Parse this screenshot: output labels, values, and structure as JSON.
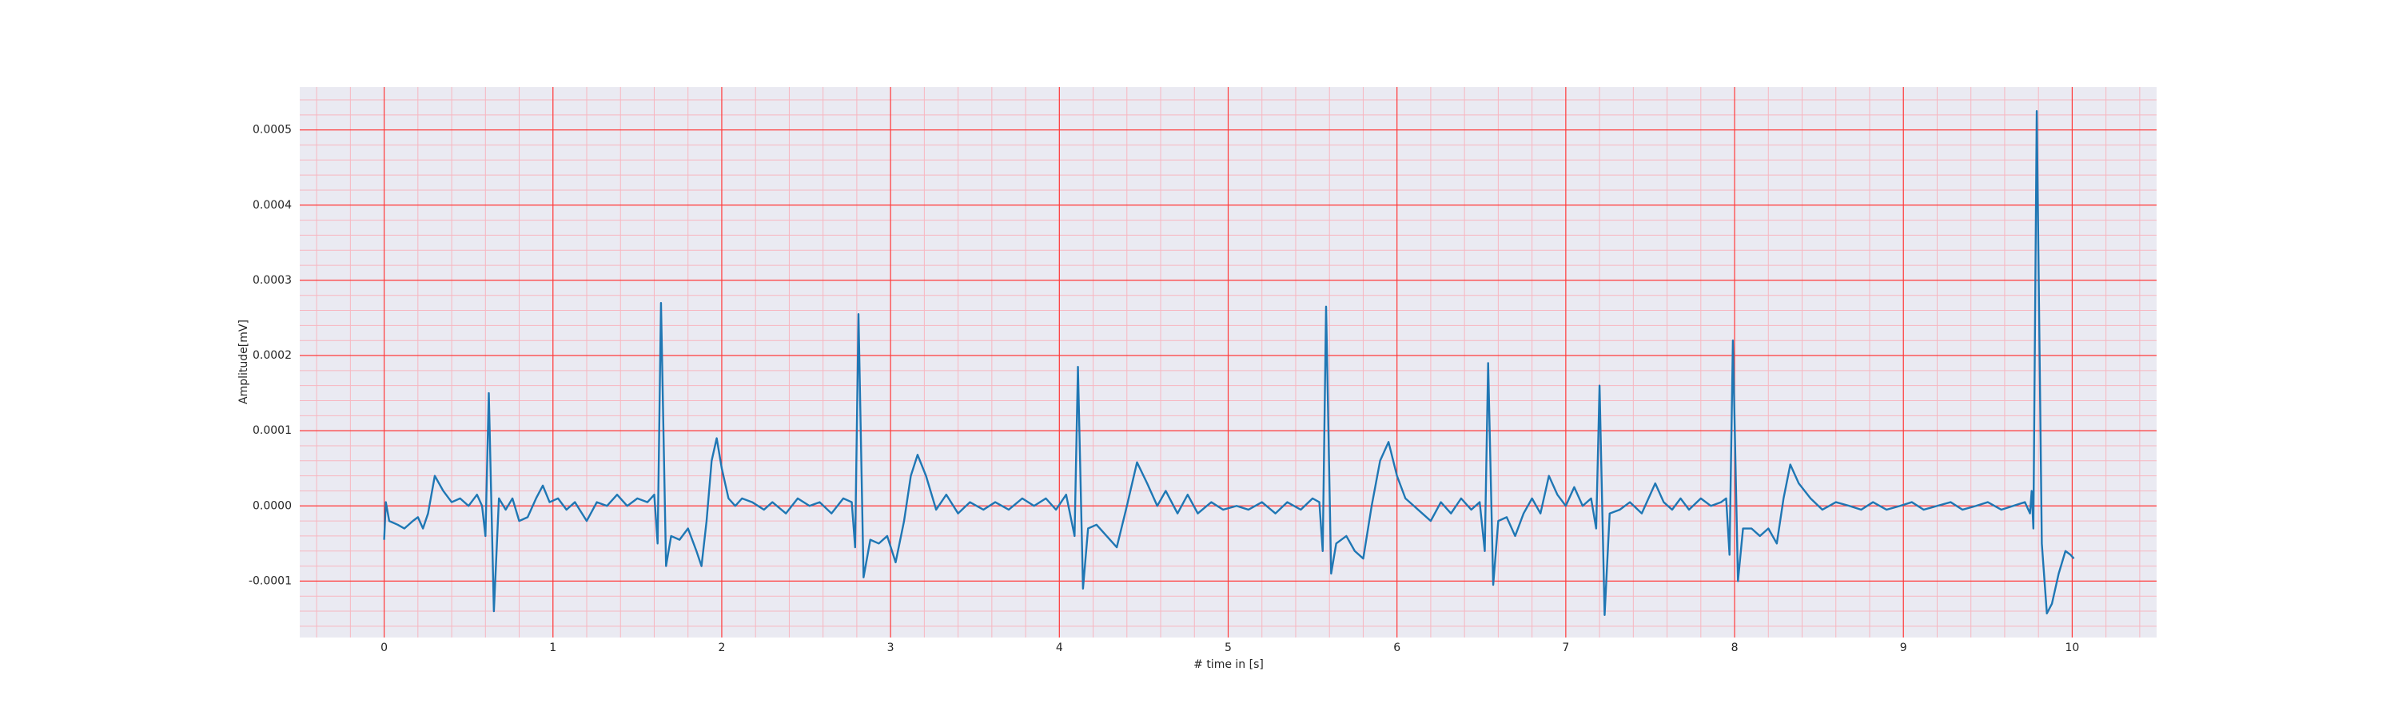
{
  "chart_data": {
    "type": "line",
    "xlabel": "# time in [s]",
    "ylabel": "Amplitude[mV]",
    "color": "#1f77b4",
    "background": "#eaeaf2",
    "grid": true,
    "grid_color": "#ff3b3b",
    "minor_grid_color": "#f7b6c0",
    "xlim": [
      -0.5,
      10.5
    ],
    "ylim": [
      -0.000175,
      0.000557
    ],
    "xticks": [
      0,
      1,
      2,
      3,
      4,
      5,
      6,
      7,
      8,
      9,
      10
    ],
    "yticks": [
      -0.0001,
      {
        "value": 0,
        "label": "0.0000"
      },
      0.0001,
      0.0002,
      0.0003,
      0.0004,
      0.0005
    ],
    "xminorticks": [
      -0.4,
      -0.2,
      0,
      0.2,
      0.4,
      0.6,
      0.8,
      1,
      1.2,
      1.4,
      1.6,
      1.8,
      2,
      2.2,
      2.4,
      2.6,
      2.8,
      3,
      3.2,
      3.4,
      3.6,
      3.8,
      4,
      4.2,
      4.4,
      4.6,
      4.8,
      5,
      5.2,
      5.4,
      5.6,
      5.8,
      6,
      6.2,
      6.4,
      6.6,
      6.8,
      7,
      7.2,
      7.4,
      7.6,
      7.8,
      8,
      8.2,
      8.4,
      8.6,
      8.8,
      9,
      9.2,
      9.4,
      9.6,
      9.8,
      10,
      10.2,
      10.4
    ],
    "yminorticks": [
      -0.00016,
      -0.00014,
      -0.00012,
      -0.0001,
      -8e-05,
      -6e-05,
      -4e-05,
      -2e-05,
      0,
      2e-05,
      4e-05,
      6e-05,
      8e-05,
      0.0001,
      0.00012,
      0.00014,
      0.00016,
      0.00018,
      0.0002,
      0.00022,
      0.00024,
      0.00026,
      0.00028,
      0.0003,
      0.00032,
      0.00034,
      0.00036,
      0.00038,
      0.0004,
      0.00042,
      0.00044,
      0.00046,
      0.00048,
      0.0005,
      0.00052,
      0.00054
    ],
    "x": [
      0,
      0.01,
      0.03,
      0.08,
      0.12,
      0.17,
      0.2,
      0.23,
      0.26,
      0.3,
      0.35,
      0.4,
      0.45,
      0.5,
      0.55,
      0.58,
      0.6,
      0.62,
      0.65,
      0.68,
      0.72,
      0.76,
      0.8,
      0.85,
      0.9,
      0.94,
      0.98,
      1.03,
      1.08,
      1.13,
      1.2,
      1.26,
      1.32,
      1.38,
      1.44,
      1.5,
      1.56,
      1.6,
      1.62,
      1.64,
      1.67,
      1.7,
      1.75,
      1.8,
      1.85,
      1.88,
      1.91,
      1.94,
      1.97,
      2,
      2.04,
      2.08,
      2.12,
      2.18,
      2.25,
      2.3,
      2.38,
      2.45,
      2.52,
      2.58,
      2.65,
      2.72,
      2.77,
      2.79,
      2.81,
      2.84,
      2.88,
      2.93,
      2.98,
      3.03,
      3.08,
      3.12,
      3.16,
      3.21,
      3.27,
      3.33,
      3.4,
      3.47,
      3.55,
      3.62,
      3.7,
      3.78,
      3.85,
      3.92,
      3.98,
      4.04,
      4.09,
      4.11,
      4.14,
      4.17,
      4.22,
      4.28,
      4.34,
      4.4,
      4.46,
      4.52,
      4.58,
      4.63,
      4.7,
      4.76,
      4.82,
      4.9,
      4.97,
      5.05,
      5.12,
      5.2,
      5.28,
      5.35,
      5.43,
      5.5,
      5.54,
      5.56,
      5.58,
      5.61,
      5.64,
      5.7,
      5.75,
      5.8,
      5.85,
      5.9,
      5.95,
      6,
      6.05,
      6.1,
      6.15,
      6.2,
      6.26,
      6.32,
      6.38,
      6.44,
      6.49,
      6.52,
      6.54,
      6.57,
      6.6,
      6.65,
      6.7,
      6.75,
      6.8,
      6.85,
      6.9,
      6.95,
      7,
      7.05,
      7.1,
      7.15,
      7.18,
      7.2,
      7.23,
      7.26,
      7.32,
      7.38,
      7.45,
      7.53,
      7.58,
      7.63,
      7.68,
      7.73,
      7.8,
      7.86,
      7.92,
      7.95,
      7.97,
      7.99,
      8.02,
      8.05,
      8.1,
      8.15,
      8.2,
      8.25,
      8.29,
      8.33,
      8.38,
      8.45,
      8.52,
      8.6,
      8.68,
      8.75,
      8.82,
      8.9,
      8.98,
      9.05,
      9.12,
      9.2,
      9.28,
      9.35,
      9.43,
      9.5,
      9.58,
      9.65,
      9.72,
      9.75,
      9.76,
      9.77,
      9.79,
      9.82,
      9.85,
      9.88,
      9.92,
      9.96,
      9.99,
      10.01
    ],
    "values": [
      -4.5e-05,
      5e-06,
      -2e-05,
      -2.5e-05,
      -3e-05,
      -2e-05,
      -1.5e-05,
      -3e-05,
      -1e-05,
      4e-05,
      2e-05,
      5e-06,
      1e-05,
      0,
      1.5e-05,
      0,
      -4e-05,
      0.00015,
      -0.00014,
      1e-05,
      -5e-06,
      1e-05,
      -2e-05,
      -1.5e-05,
      1e-05,
      2.7e-05,
      5e-06,
      1e-05,
      -5e-06,
      5e-06,
      -2e-05,
      5e-06,
      0,
      1.5e-05,
      0,
      1e-05,
      5e-06,
      1.5e-05,
      -5e-05,
      0.00027,
      -8e-05,
      -4e-05,
      -4.5e-05,
      -3e-05,
      -6e-05,
      -8e-05,
      -2e-05,
      6e-05,
      9e-05,
      5e-05,
      1e-05,
      0,
      1e-05,
      5e-06,
      -5e-06,
      5e-06,
      -1e-05,
      1e-05,
      0,
      5e-06,
      -1e-05,
      1e-05,
      5e-06,
      -5.5e-05,
      0.000255,
      -9.5e-05,
      -4.5e-05,
      -5e-05,
      -4e-05,
      -7.5e-05,
      -2e-05,
      4e-05,
      6.8e-05,
      4e-05,
      -5e-06,
      1.5e-05,
      -1e-05,
      5e-06,
      -5e-06,
      5e-06,
      -5e-06,
      1e-05,
      0,
      1e-05,
      -5e-06,
      1.5e-05,
      -4e-05,
      0.000185,
      -0.00011,
      -3e-05,
      -2.5e-05,
      -4e-05,
      -5.5e-05,
      0,
      5.8e-05,
      3e-05,
      0,
      2e-05,
      -1e-05,
      1.5e-05,
      -1e-05,
      5e-06,
      -5e-06,
      0,
      -5e-06,
      5e-06,
      -1e-05,
      5e-06,
      -5e-06,
      1e-05,
      5e-06,
      -6e-05,
      0.000265,
      -9e-05,
      -5e-05,
      -4e-05,
      -6e-05,
      -7e-05,
      0,
      6e-05,
      8.5e-05,
      4e-05,
      1e-05,
      0,
      -1e-05,
      -2e-05,
      5e-06,
      -1e-05,
      1e-05,
      -5e-06,
      5e-06,
      -6e-05,
      0.00019,
      -0.000105,
      -2e-05,
      -1.5e-05,
      -4e-05,
      -1e-05,
      1e-05,
      -1e-05,
      4e-05,
      1.5e-05,
      0,
      2.5e-05,
      0,
      1e-05,
      -3e-05,
      0.00016,
      -0.000145,
      -1e-05,
      -5e-06,
      5e-06,
      -1e-05,
      3e-05,
      5e-06,
      -5e-06,
      1e-05,
      -5e-06,
      1e-05,
      0,
      5e-06,
      1e-05,
      -6.5e-05,
      0.00022,
      -0.0001,
      -3e-05,
      -3e-05,
      -4e-05,
      -3e-05,
      -5e-05,
      1e-05,
      5.5e-05,
      3e-05,
      1e-05,
      -5e-06,
      5e-06,
      0,
      -5e-06,
      5e-06,
      -5e-06,
      0,
      5e-06,
      -5e-06,
      0,
      5e-06,
      -5e-06,
      0,
      5e-06,
      -5e-06,
      0,
      5e-06,
      -1e-05,
      2e-05,
      -3e-05,
      0.000525,
      -5e-05,
      -0.000143,
      -0.00013,
      -9e-05,
      -6e-05,
      -6.5e-05,
      -7e-05
    ]
  }
}
